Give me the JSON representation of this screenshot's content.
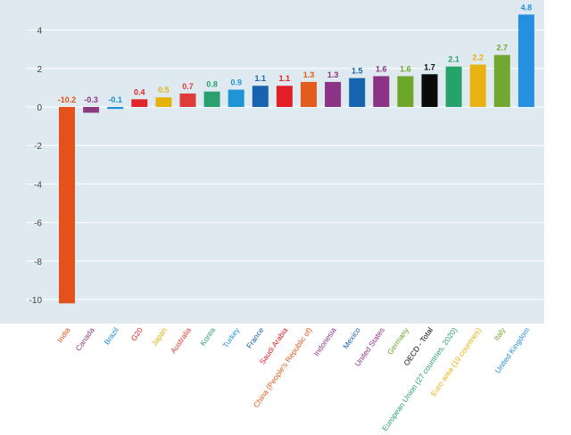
{
  "chart_data": {
    "type": "bar",
    "title": "",
    "xlabel": "",
    "ylabel": "",
    "ylim": [
      -11,
      5
    ],
    "yticks": [
      -10,
      -8,
      -6,
      -4,
      -2,
      0,
      2,
      4
    ],
    "grid": true,
    "legend": "none",
    "categories": [
      "India",
      "Canada",
      "Brazil",
      "G20",
      "Japan",
      "Australia",
      "Korea",
      "Turkey",
      "France",
      "Saudi Arabia",
      "China (People's Republic of)",
      "Indonesia",
      "Mexico",
      "United States",
      "Germany",
      "OECD - Total",
      "European Union (27 countries, 2020)",
      "Euro area (19 countries)",
      "Italy",
      "United Kingdom"
    ],
    "values": [
      -10.2,
      -0.3,
      -0.1,
      0.4,
      0.5,
      0.7,
      0.8,
      0.9,
      1.1,
      1.1,
      1.3,
      1.3,
      1.5,
      1.6,
      1.6,
      1.7,
      2.1,
      2.2,
      2.7,
      4.8
    ],
    "value_labels": [
      "-10.2",
      "-0.3",
      "-0.1",
      "0.4",
      "0.5",
      "0.7",
      "0.8",
      "0.9",
      "1.1",
      "1.1",
      "1.3",
      "1.3",
      "1.5",
      "1.6",
      "1.6",
      "1.7",
      "2.1",
      "2.2",
      "2.7",
      "4.8"
    ],
    "colors": [
      "#e4521c",
      "#8e3a80",
      "#1a8fd6",
      "#e0262b",
      "#e5b20e",
      "#df3b3b",
      "#2aa070",
      "#1f95d8",
      "#1763b0",
      "#e21f26",
      "#e35b1d",
      "#8b3384",
      "#1664ae",
      "#8b3384",
      "#6ea62a",
      "#0a0a0a",
      "#27a36a",
      "#e8b310",
      "#72a830",
      "#2490df"
    ]
  }
}
